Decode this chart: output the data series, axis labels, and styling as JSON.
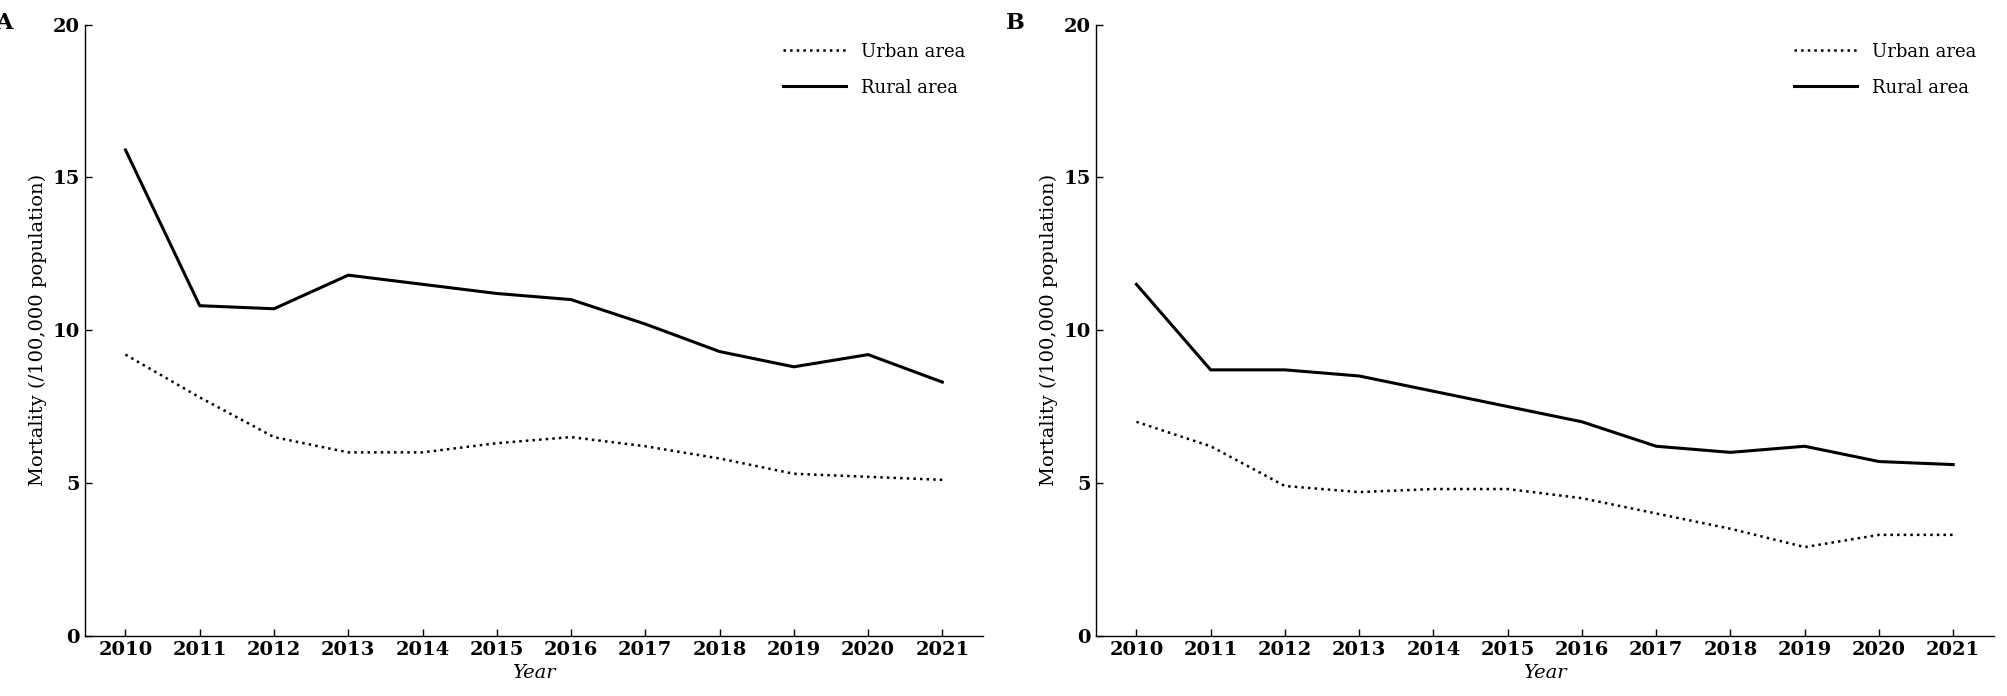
{
  "years": [
    2010,
    2011,
    2012,
    2013,
    2014,
    2015,
    2016,
    2017,
    2018,
    2019,
    2020,
    2021
  ],
  "panel_A": {
    "label": "A",
    "urban": [
      9.2,
      7.8,
      6.5,
      6.0,
      6.0,
      6.3,
      6.5,
      6.2,
      5.8,
      5.3,
      5.2,
      5.1
    ],
    "rural": [
      15.9,
      10.8,
      10.7,
      11.8,
      11.5,
      11.2,
      11.0,
      10.2,
      9.3,
      8.8,
      9.2,
      8.3
    ]
  },
  "panel_B": {
    "label": "B",
    "urban": [
      7.0,
      6.2,
      4.9,
      4.7,
      4.8,
      4.8,
      4.5,
      4.0,
      3.5,
      2.9,
      3.3,
      3.3
    ],
    "rural": [
      11.5,
      8.7,
      8.7,
      8.5,
      8.0,
      7.5,
      7.0,
      6.2,
      6.0,
      6.2,
      5.7,
      5.6
    ]
  },
  "ylabel": "Mortality (/100,000 population)",
  "xlabel": "Year",
  "ylim": [
    0,
    20
  ],
  "yticks": [
    0,
    5,
    10,
    15,
    20
  ],
  "legend_urban": "Urban area",
  "legend_rural": "Rural area",
  "line_color": "#000000",
  "background_color": "#ffffff",
  "urban_linestyle": "dotted",
  "rural_linestyle": "solid",
  "rural_linewidth": 2.2,
  "urban_linewidth": 1.8,
  "panel_label_fontsize": 16,
  "axis_label_fontsize": 14,
  "tick_fontsize": 14,
  "legend_fontsize": 13
}
